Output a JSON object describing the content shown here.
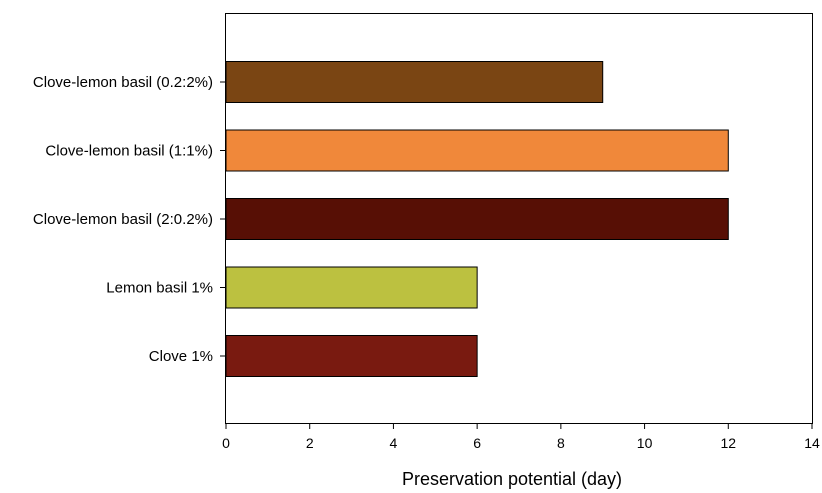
{
  "chart_data": {
    "type": "bar",
    "orientation": "horizontal",
    "title": "",
    "xlabel": "Preservation potential (day)",
    "ylabel": "",
    "xlim": [
      0,
      14
    ],
    "xticks": [
      0,
      2,
      4,
      6,
      8,
      10,
      12,
      14
    ],
    "grid": false,
    "legend": false,
    "categories": [
      "Clove-lemon basil (0.2:2%)",
      "Clove-lemon basil (1:1%)",
      "Clove-lemon basil (2:0.2%)",
      "Lemon basil 1%",
      "Clove 1%"
    ],
    "values": [
      9,
      12,
      12,
      6,
      6
    ],
    "colors": [
      "#7a4513",
      "#f0883a",
      "#570f05",
      "#bcc140",
      "#791a10"
    ]
  }
}
